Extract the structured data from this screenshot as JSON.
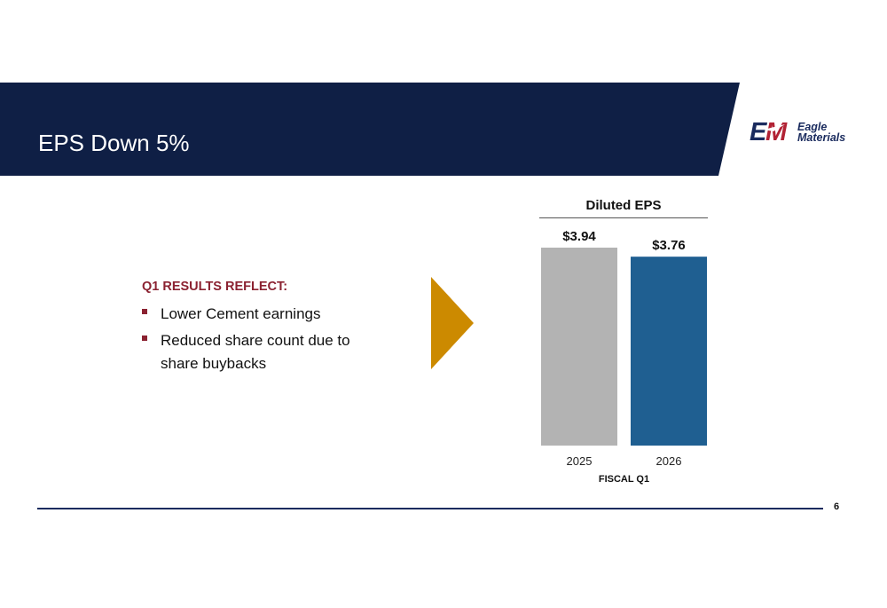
{
  "slide": {
    "title": "EPS Down 5%",
    "page_number": "6"
  },
  "logo": {
    "mark": "EM",
    "line1": "Eagle",
    "line2": "Materials"
  },
  "results": {
    "heading": "Q1 RESULTS REFLECT:",
    "bullets": [
      {
        "line1": "Lower Cement earnings"
      },
      {
        "line1": "Reduced share count due to",
        "line2": "share buybacks"
      }
    ]
  },
  "colors": {
    "banner": "#0f1f45",
    "accent_red": "#8b2231",
    "arrow": "#cc8a00",
    "bar_2025": "#b3b3b3",
    "bar_2026": "#1f5f91"
  },
  "chart_data": {
    "type": "bar",
    "title": "Diluted EPS",
    "categories": [
      "2025",
      "2026"
    ],
    "values": [
      3.94,
      3.76
    ],
    "labels": [
      "$3.94",
      "$3.76"
    ],
    "xlabel": "FISCAL Q1",
    "ylabel": "",
    "ylim": [
      0,
      3.94
    ],
    "grid": false
  }
}
